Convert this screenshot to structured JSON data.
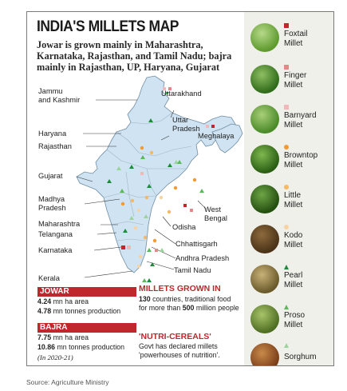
{
  "title": "INDIA'S MILLETS MAP",
  "subtitle": "Jowar is grown mainly in Maharashtra, Karnataka, Rajasthan, and Tamil Nadu; bajra mainly in Rajasthan, UP, Haryana, Gujarat",
  "state_labels": {
    "jk": "Jammu\nand Kashmir",
    "uttarakhand": "Uttarakhand",
    "haryana": "Haryana",
    "rajasthan": "Rajasthan",
    "up": "Uttar\nPradesh",
    "meghalaya": "Meghalaya",
    "gujarat": "Gujarat",
    "mp": "Madhya\nPradesh",
    "wb": "West\nBengal",
    "maharashtra": "Maharashtra",
    "telangana": "Telangana",
    "odisha": "Odisha",
    "karnataka": "Karnataka",
    "chhattisgarh": "Chhattisgarh",
    "ap": "Andhra Pradesh",
    "tn": "Tamil Nadu",
    "kerala": "Kerala"
  },
  "legend": [
    {
      "name": "Foxtail\nMillet",
      "symbol": "square",
      "color": "#c0272d",
      "icon": "foxtail-photo"
    },
    {
      "name": "Finger\nMillet",
      "symbol": "square",
      "color": "#e08a8a",
      "icon": "finger-photo"
    },
    {
      "name": "Barnyard\nMillet",
      "symbol": "square",
      "color": "#f0b8b8",
      "icon": "barnyard-photo"
    },
    {
      "name": "Browntop\nMillet",
      "symbol": "circle",
      "color": "#f29a32",
      "icon": "browntop-photo"
    },
    {
      "name": "Little\nMillet",
      "symbol": "circle",
      "color": "#f5b865",
      "icon": "little-photo"
    },
    {
      "name": "Kodo\nMillet",
      "symbol": "circle",
      "color": "#f7d3a4",
      "icon": "kodo-photo"
    },
    {
      "name": "Pearl\nMillet",
      "symbol": "triangle",
      "color": "#1e8a3a",
      "icon": "pearl-photo"
    },
    {
      "name": "Proso\nMillet",
      "symbol": "triangle",
      "color": "#5cb85c",
      "icon": "proso-photo"
    },
    {
      "name": "Sorghum",
      "symbol": "triangle",
      "color": "#9ad49a",
      "icon": "sorghum-photo"
    }
  ],
  "jowar": {
    "header": "JOWAR",
    "area_value": "4.24",
    "area_unit": "mn ha area",
    "prod_value": "4.78",
    "prod_unit": "mn tonnes production"
  },
  "bajra": {
    "header": "BAJRA",
    "area_value": "7.75",
    "area_unit": "mn ha area",
    "prod_value": "10.86",
    "prod_unit": "mn tonnes production",
    "note": "(In 2020-21)"
  },
  "grown": {
    "header": "MILLETS GROWN IN",
    "count": "130",
    "text1": " countries, traditional food for more than ",
    "count2": "500",
    "text2": " million people"
  },
  "nutri": {
    "header": "'NUTRI-CEREALS'",
    "text": "Govt has declared millets 'powerhouses of nutrition'."
  },
  "source": "Source: Agriculture Ministry",
  "colors": {
    "map_fill": "#cfe3f2",
    "accent_red": "#c0272d",
    "legend_bg": "#f0f0ea"
  }
}
